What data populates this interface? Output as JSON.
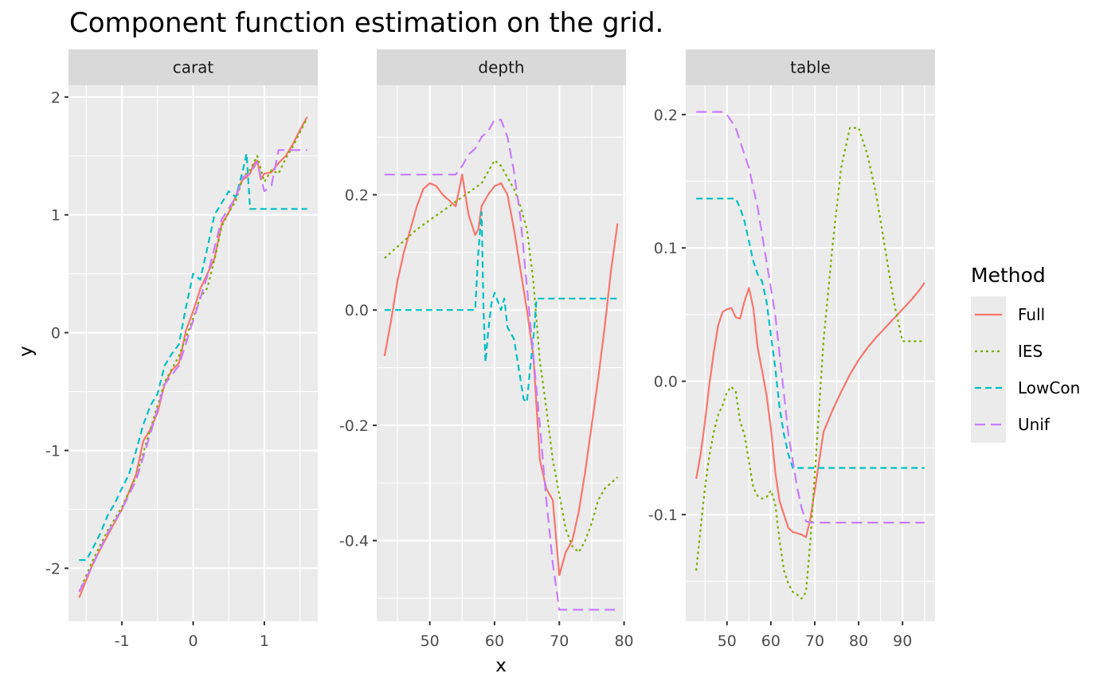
{
  "chart_data": {
    "type": "line",
    "title": "Component function estimation on the grid.",
    "xlabel": "x",
    "ylabel": "y",
    "grid": true,
    "legend": {
      "title": "Method",
      "placement": "right",
      "entries": [
        {
          "name": "Full",
          "color": "#F8766D",
          "dash": "solid"
        },
        {
          "name": "IES",
          "color": "#7CAE00",
          "dash": "dotted"
        },
        {
          "name": "LowCon",
          "color": "#00BFC4",
          "dash": "dashed"
        },
        {
          "name": "Unif",
          "color": "#C77CFF",
          "dash": "longdash"
        }
      ]
    },
    "panels": [
      {
        "strip": "carat",
        "xlim": [
          -1.75,
          1.75
        ],
        "ylim": [
          -2.45,
          2.1
        ],
        "xticks": [
          -1,
          0,
          1
        ],
        "xtick_labels": [
          "-1",
          "0",
          "1"
        ],
        "yticks": [
          -2,
          -1,
          0,
          1,
          2
        ],
        "ytick_labels": [
          "-2",
          "-1",
          "0",
          "1",
          "2"
        ],
        "series": [
          {
            "name": "Full",
            "x": [
              -1.6,
              -1.4,
              -1.2,
              -1.0,
              -0.8,
              -0.7,
              -0.6,
              -0.5,
              -0.4,
              -0.3,
              -0.2,
              -0.1,
              0.0,
              0.1,
              0.2,
              0.3,
              0.4,
              0.5,
              0.6,
              0.65,
              0.7,
              0.75,
              0.8,
              0.85,
              0.9,
              0.95,
              1.0,
              1.1,
              1.2,
              1.3,
              1.4,
              1.5,
              1.6
            ],
            "y": [
              -2.25,
              -1.95,
              -1.72,
              -1.5,
              -1.2,
              -0.92,
              -0.82,
              -0.68,
              -0.44,
              -0.32,
              -0.26,
              0.02,
              0.18,
              0.37,
              0.5,
              0.63,
              0.92,
              1.02,
              1.16,
              1.25,
              1.3,
              1.32,
              1.35,
              1.43,
              1.46,
              1.3,
              1.35,
              1.36,
              1.44,
              1.5,
              1.6,
              1.72,
              1.83
            ]
          },
          {
            "name": "IES",
            "x": [
              -1.6,
              -1.4,
              -1.2,
              -1.0,
              -0.8,
              -0.6,
              -0.4,
              -0.2,
              0.0,
              0.1,
              0.2,
              0.3,
              0.4,
              0.5,
              0.6,
              0.7,
              0.8,
              0.9,
              1.0,
              1.1,
              1.2,
              1.3,
              1.4,
              1.5,
              1.6
            ],
            "y": [
              -2.2,
              -1.92,
              -1.68,
              -1.48,
              -1.22,
              -0.82,
              -0.42,
              -0.2,
              0.12,
              0.3,
              0.38,
              0.62,
              0.9,
              1.02,
              1.12,
              1.32,
              1.38,
              1.5,
              1.28,
              1.38,
              1.35,
              1.48,
              1.58,
              1.7,
              1.82
            ]
          },
          {
            "name": "LowCon",
            "x": [
              -1.6,
              -1.5,
              -1.4,
              -1.3,
              -1.2,
              -1.1,
              -1.0,
              -0.9,
              -0.8,
              -0.7,
              -0.6,
              -0.5,
              -0.4,
              -0.3,
              -0.2,
              -0.1,
              0.0,
              0.1,
              0.2,
              0.3,
              0.4,
              0.5,
              0.6,
              0.7,
              0.75,
              0.8,
              0.85,
              0.9,
              1.0,
              1.2,
              1.4,
              1.6
            ],
            "y": [
              -1.93,
              -1.93,
              -1.82,
              -1.7,
              -1.55,
              -1.45,
              -1.32,
              -1.2,
              -1.0,
              -0.78,
              -0.62,
              -0.52,
              -0.28,
              -0.18,
              -0.1,
              0.22,
              0.5,
              0.45,
              0.72,
              1.0,
              1.1,
              1.2,
              1.15,
              1.38,
              1.52,
              1.05,
              1.05,
              1.05,
              1.05,
              1.05,
              1.05,
              1.05
            ]
          },
          {
            "name": "Unif",
            "x": [
              -1.6,
              -1.4,
              -1.2,
              -1.0,
              -0.8,
              -0.6,
              -0.4,
              -0.2,
              0.0,
              0.2,
              0.4,
              0.6,
              0.7,
              0.8,
              0.9,
              1.0,
              1.1,
              1.2,
              1.3,
              1.4,
              1.5,
              1.6
            ],
            "y": [
              -2.2,
              -1.96,
              -1.7,
              -1.5,
              -1.25,
              -0.86,
              -0.44,
              -0.28,
              0.1,
              0.48,
              0.96,
              1.15,
              1.32,
              1.35,
              1.45,
              1.2,
              1.25,
              1.55,
              1.55,
              1.55,
              1.55,
              1.55
            ]
          }
        ]
      },
      {
        "strip": "depth",
        "xlim": [
          41.8,
          80.3
        ],
        "ylim": [
          -0.54,
          0.39
        ],
        "xticks": [
          50,
          60,
          70,
          80
        ],
        "xtick_labels": [
          "50",
          "60",
          "70",
          "80"
        ],
        "yticks": [
          -0.4,
          -0.2,
          0.0,
          0.2
        ],
        "ytick_labels": [
          "-0.4",
          "-0.2",
          "0.0",
          "0.2"
        ],
        "series": [
          {
            "name": "Full",
            "x": [
              43,
              44,
              45,
              46,
              47,
              48,
              49,
              50,
              51,
              52,
              53,
              54,
              55,
              56,
              57,
              57.5,
              58,
              59,
              60,
              61,
              62,
              63,
              64,
              65,
              66,
              67,
              68,
              69,
              70,
              71,
              72,
              73,
              74,
              75,
              76,
              77,
              78,
              79
            ],
            "y": [
              -0.08,
              -0.02,
              0.05,
              0.1,
              0.14,
              0.18,
              0.21,
              0.22,
              0.215,
              0.2,
              0.19,
              0.18,
              0.235,
              0.165,
              0.13,
              0.14,
              0.18,
              0.2,
              0.215,
              0.22,
              0.2,
              0.14,
              0.07,
              0.0,
              -0.08,
              -0.26,
              -0.31,
              -0.33,
              -0.46,
              -0.42,
              -0.4,
              -0.35,
              -0.28,
              -0.2,
              -0.12,
              -0.03,
              0.07,
              0.15
            ]
          },
          {
            "name": "IES",
            "x": [
              43,
              48,
              53,
              58,
              60,
              61,
              62,
              63,
              64,
              65,
              66,
              67,
              68,
              69,
              70,
              71,
              72,
              73,
              74,
              75,
              76,
              77,
              78,
              79
            ],
            "y": [
              0.09,
              0.14,
              0.18,
              0.22,
              0.26,
              0.25,
              0.23,
              0.21,
              0.18,
              0.14,
              0.05,
              -0.09,
              -0.17,
              -0.26,
              -0.32,
              -0.38,
              -0.41,
              -0.42,
              -0.4,
              -0.37,
              -0.33,
              -0.31,
              -0.3,
              -0.29
            ]
          },
          {
            "name": "LowCon",
            "x": [
              43,
              57,
              57.5,
              58,
              58.3,
              58.6,
              59,
              59.5,
              60,
              61,
              61.5,
              62,
              63,
              64,
              64.5,
              65,
              65.5,
              66,
              66.5,
              67,
              79
            ],
            "y": [
              0.0,
              0.0,
              0.1,
              0.17,
              0.0,
              -0.09,
              -0.04,
              0.01,
              0.03,
              0.0,
              0.02,
              -0.03,
              -0.05,
              -0.12,
              -0.155,
              -0.16,
              -0.1,
              -0.05,
              0.02,
              0.02,
              0.02
            ]
          },
          {
            "name": "Unif",
            "x": [
              43,
              54,
              55,
              56,
              57,
              58,
              59,
              60,
              61,
              62,
              63,
              64,
              65,
              66,
              67,
              68,
              69,
              70,
              71,
              72,
              79
            ],
            "y": [
              0.235,
              0.235,
              0.25,
              0.27,
              0.28,
              0.3,
              0.31,
              0.33,
              0.33,
              0.3,
              0.24,
              0.16,
              0.04,
              -0.08,
              -0.2,
              -0.33,
              -0.44,
              -0.52,
              -0.52,
              -0.52,
              -0.52
            ]
          }
        ]
      },
      {
        "strip": "table",
        "xlim": [
          40.6,
          97.4
        ],
        "ylim": [
          -0.18,
          0.222
        ],
        "xticks": [
          50,
          60,
          70,
          80,
          90
        ],
        "xtick_labels": [
          "50",
          "60",
          "70",
          "80",
          "90"
        ],
        "yticks": [
          -0.1,
          0.0,
          0.1,
          0.2
        ],
        "ytick_labels": [
          "-0.1",
          "0.0",
          "0.1",
          "0.2"
        ],
        "series": [
          {
            "name": "Full",
            "x": [
              43,
              44,
              45,
              46,
              47,
              48,
              49,
              50,
              51,
              52,
              53,
              54,
              55,
              56,
              57,
              58,
              59,
              60,
              61,
              62,
              63,
              64,
              65,
              66,
              67,
              68,
              69,
              70,
              71,
              72,
              74,
              76,
              78,
              80,
              82,
              84,
              86,
              88,
              90,
              92,
              94,
              95
            ],
            "y": [
              -0.073,
              -0.055,
              -0.03,
              -0.002,
              0.022,
              0.042,
              0.052,
              0.054,
              0.055,
              0.048,
              0.047,
              0.06,
              0.07,
              0.055,
              0.025,
              0.008,
              -0.01,
              -0.035,
              -0.068,
              -0.09,
              -0.1,
              -0.11,
              -0.113,
              -0.114,
              -0.115,
              -0.117,
              -0.103,
              -0.082,
              -0.06,
              -0.038,
              -0.022,
              -0.008,
              0.005,
              0.016,
              0.025,
              0.033,
              0.04,
              0.047,
              0.054,
              0.061,
              0.069,
              0.074
            ]
          },
          {
            "name": "IES",
            "x": [
              43,
              44,
              45,
              46,
              47,
              48,
              49,
              50,
              51,
              52,
              53,
              54,
              55,
              56,
              57,
              58,
              59,
              60,
              61,
              62,
              63,
              64,
              65,
              66,
              67,
              68,
              69,
              70,
              71,
              72,
              74,
              76,
              78,
              80,
              82,
              84,
              86,
              88,
              90,
              92,
              94,
              95
            ],
            "y": [
              -0.142,
              -0.11,
              -0.08,
              -0.055,
              -0.038,
              -0.025,
              -0.018,
              -0.008,
              -0.004,
              -0.008,
              -0.03,
              -0.04,
              -0.06,
              -0.08,
              -0.086,
              -0.088,
              -0.087,
              -0.082,
              -0.092,
              -0.12,
              -0.142,
              -0.152,
              -0.158,
              -0.16,
              -0.163,
              -0.158,
              -0.12,
              -0.07,
              -0.02,
              0.03,
              0.1,
              0.16,
              0.19,
              0.19,
              0.17,
              0.14,
              0.1,
              0.06,
              0.03,
              0.03,
              0.03,
              0.03
            ]
          },
          {
            "name": "LowCon",
            "x": [
              43,
              52,
              53,
              54,
              55,
              56,
              57,
              58,
              59,
              60,
              61,
              62,
              63,
              64,
              65,
              66,
              95
            ],
            "y": [
              0.137,
              0.137,
              0.13,
              0.12,
              0.105,
              0.09,
              0.08,
              0.075,
              0.06,
              0.035,
              0.01,
              -0.02,
              -0.04,
              -0.055,
              -0.065,
              -0.065,
              -0.065
            ]
          },
          {
            "name": "Unif",
            "x": [
              43,
              49,
              50,
              51,
              52,
              53,
              54,
              55,
              56,
              57,
              58,
              59,
              60,
              61,
              62,
              63,
              64,
              65,
              66,
              67,
              68,
              69,
              70,
              95
            ],
            "y": [
              0.202,
              0.202,
              0.2,
              0.195,
              0.19,
              0.18,
              0.17,
              0.16,
              0.145,
              0.13,
              0.11,
              0.09,
              0.07,
              0.05,
              0.02,
              -0.01,
              -0.04,
              -0.06,
              -0.08,
              -0.095,
              -0.105,
              -0.106,
              -0.106,
              -0.106
            ]
          }
        ]
      }
    ]
  }
}
